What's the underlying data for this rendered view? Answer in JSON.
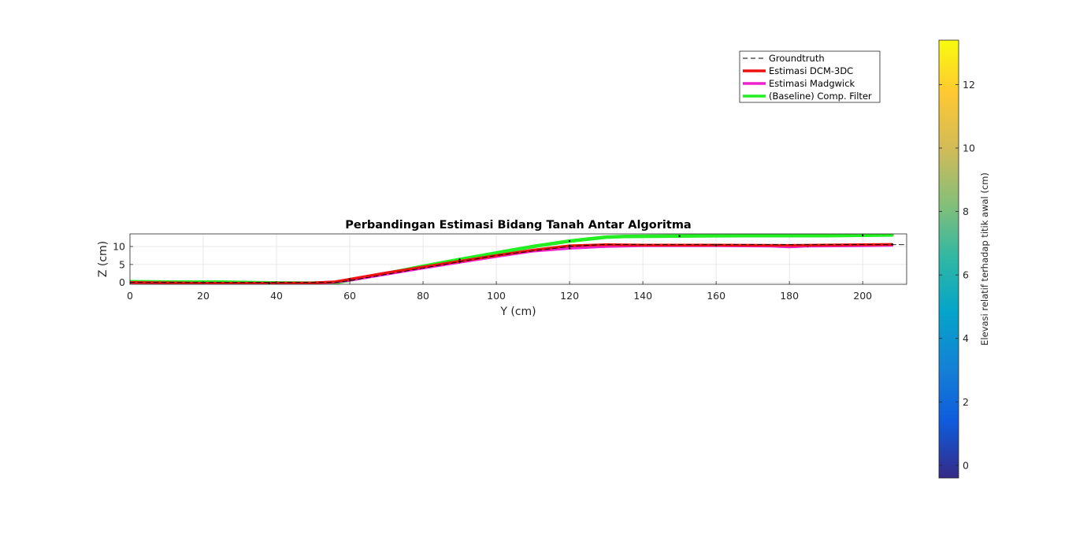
{
  "chart_data": {
    "type": "line",
    "title": "Perbandingan Estimasi Bidang Tanah Antar Algoritma",
    "xlabel": "Y (cm)",
    "ylabel": "Z (cm)",
    "xlim": [
      0,
      212
    ],
    "ylim": [
      -0.5,
      13.5
    ],
    "xticks": [
      0,
      20,
      40,
      60,
      80,
      100,
      120,
      140,
      160,
      180,
      200
    ],
    "yticks": [
      0,
      5,
      10
    ],
    "grid": true,
    "legend": {
      "position": "top-right",
      "entries": [
        "Groundtruth",
        "Estimasi DCM-3DC",
        "Estimasi Madgwick",
        "(Baseline) Comp. Filter"
      ]
    },
    "colorbar": {
      "label": "Elevasi relatif terhadap titik awal (cm)",
      "range": [
        -0.4,
        13.4
      ],
      "ticks": [
        0,
        2,
        4,
        6,
        8,
        10,
        12
      ]
    },
    "series": [
      {
        "name": "Groundtruth",
        "color": "#000000",
        "style": "dashed",
        "x": [
          0,
          12,
          38,
          56,
          60,
          80,
          100,
          120,
          128,
          160,
          190,
          208,
          212
        ],
        "y": [
          0,
          0,
          0,
          0,
          0.5,
          4,
          7.5,
          10,
          10.5,
          10.5,
          10.5,
          10.5,
          10.5
        ]
      },
      {
        "name": "Estimasi DCM-3DC",
        "color": "#ee1111",
        "style": "solid",
        "x": [
          0,
          12,
          20,
          38,
          50,
          56,
          60,
          70,
          80,
          90,
          100,
          110,
          120,
          130,
          140,
          160,
          180,
          200,
          208
        ],
        "y": [
          0,
          -0.1,
          -0.2,
          -0.2,
          -0.1,
          0.2,
          0.9,
          2.7,
          4.3,
          5.9,
          7.5,
          9.0,
          10.2,
          10.5,
          10.4,
          10.4,
          10.3,
          10.5,
          10.6
        ]
      },
      {
        "name": "Estimasi Madgwick",
        "color": "#ee22cc",
        "style": "solid",
        "x": [
          0,
          12,
          20,
          38,
          50,
          56,
          60,
          70,
          80,
          90,
          100,
          110,
          120,
          130,
          140,
          160,
          175,
          180,
          185,
          200,
          208
        ],
        "y": [
          0,
          -0.2,
          -0.4,
          -0.4,
          -0.2,
          0.1,
          0.6,
          2.3,
          4.0,
          5.6,
          7.2,
          8.7,
          9.5,
          10.0,
          10.2,
          10.2,
          10.1,
          9.9,
          10.1,
          10.2,
          10.3
        ]
      },
      {
        "name": "(Baseline) Comp. Filter",
        "color": "#22ee22",
        "style": "solid",
        "x": [
          0,
          12,
          25,
          38,
          50,
          56,
          60,
          70,
          80,
          90,
          100,
          110,
          120,
          130,
          135,
          150,
          166,
          190,
          200,
          208
        ],
        "y": [
          0.2,
          0.1,
          0.1,
          -0.1,
          -0.2,
          -0.1,
          0.7,
          2.5,
          4.5,
          6.4,
          8.2,
          10.0,
          11.5,
          12.6,
          12.8,
          12.9,
          13.0,
          13.0,
          13.1,
          13.2
        ]
      }
    ]
  }
}
